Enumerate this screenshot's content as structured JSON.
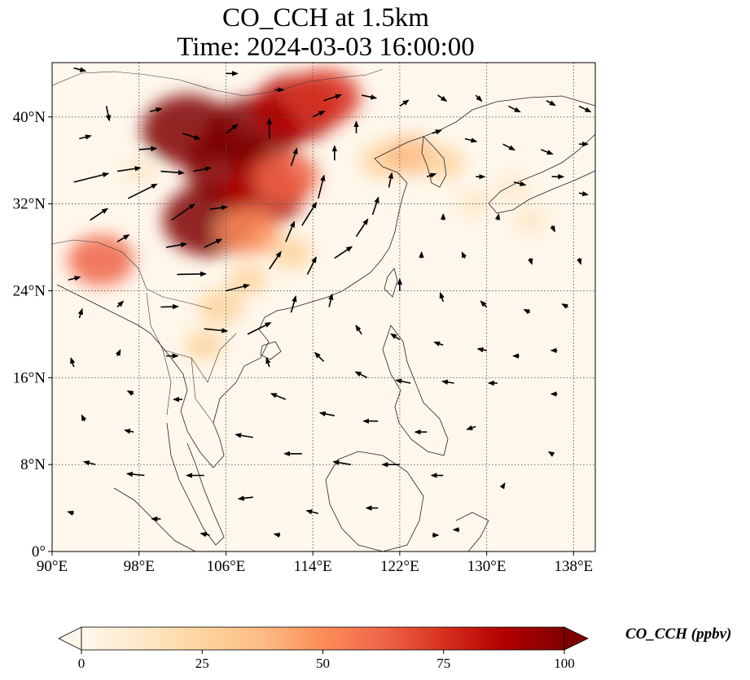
{
  "title_line1": "CO_CCH at 1.5km",
  "title_line2": "Time: 2024-03-03 16:00:00",
  "map": {
    "lon_range": [
      90,
      140
    ],
    "lat_range": [
      0,
      45
    ],
    "lon_ticks": [
      {
        "value": 90,
        "label": "90°E"
      },
      {
        "value": 98,
        "label": "98°E"
      },
      {
        "value": 106,
        "label": "106°E"
      },
      {
        "value": 114,
        "label": "114°E"
      },
      {
        "value": 122,
        "label": "122°E"
      },
      {
        "value": 130,
        "label": "130°E"
      },
      {
        "value": 138,
        "label": "138°E"
      }
    ],
    "lat_ticks": [
      {
        "value": 0,
        "label": "0°"
      },
      {
        "value": 8,
        "label": "8°N"
      },
      {
        "value": 16,
        "label": "16°N"
      },
      {
        "value": 24,
        "label": "24°N"
      },
      {
        "value": 32,
        "label": "32°N"
      },
      {
        "value": 40,
        "label": "40°N"
      }
    ],
    "gridlines": true,
    "colormap": "OrRd"
  },
  "colorbar": {
    "label": "CO_CCH (ppbv)",
    "min": 0,
    "max": 100,
    "extend": "both",
    "ticks": [
      {
        "value": 0,
        "label": "0"
      },
      {
        "value": 25,
        "label": "25"
      },
      {
        "value": 50,
        "label": "50"
      },
      {
        "value": 75,
        "label": "75"
      },
      {
        "value": 100,
        "label": "100"
      }
    ],
    "colors": [
      "#fff7ec",
      "#fee8c8",
      "#fdd49e",
      "#fdbb84",
      "#fc8d59",
      "#ef6548",
      "#d7301f",
      "#b30000",
      "#7f0000"
    ]
  },
  "co_plumes": [
    {
      "lon": 106.5,
      "lat": 35.5,
      "value": 100
    },
    {
      "lon": 108.5,
      "lat": 38.5,
      "value": 100
    },
    {
      "lon": 104.5,
      "lat": 30.5,
      "value": 100
    },
    {
      "lon": 102.5,
      "lat": 38.8,
      "value": 98
    },
    {
      "lon": 112.5,
      "lat": 40.8,
      "value": 90
    },
    {
      "lon": 115.0,
      "lat": 41.8,
      "value": 70
    },
    {
      "lon": 109.5,
      "lat": 33.0,
      "value": 85
    },
    {
      "lon": 111.5,
      "lat": 34.5,
      "value": 60
    },
    {
      "lon": 108.0,
      "lat": 29.5,
      "value": 55
    },
    {
      "lon": 94.5,
      "lat": 26.8,
      "value": 60
    },
    {
      "lon": 120.5,
      "lat": 36.0,
      "value": 30
    },
    {
      "lon": 123.0,
      "lat": 36.5,
      "value": 40
    },
    {
      "lon": 126.0,
      "lat": 35.8,
      "value": 25
    },
    {
      "lon": 112.0,
      "lat": 27.5,
      "value": 25
    },
    {
      "lon": 105.5,
      "lat": 22.5,
      "value": 30
    },
    {
      "lon": 104.0,
      "lat": 19.0,
      "value": 20
    },
    {
      "lon": 108.0,
      "lat": 25.0,
      "value": 20
    },
    {
      "lon": 134.0,
      "lat": 30.5,
      "value": 15
    },
    {
      "lon": 129.0,
      "lat": 32.0,
      "value": 15
    },
    {
      "lon": 132.5,
      "lat": 33.5,
      "value": 12
    },
    {
      "lon": 98.0,
      "lat": 35.0,
      "value": 10
    }
  ],
  "wind_vectors": [
    {
      "lon": 92.0,
      "lat": 34.0,
      "u": 6,
      "v": 1.5
    },
    {
      "lon": 96.0,
      "lat": 35.0,
      "u": 4,
      "v": 0.6
    },
    {
      "lon": 98.0,
      "lat": 37.0,
      "u": 3,
      "v": 0.2
    },
    {
      "lon": 100.0,
      "lat": 35.0,
      "u": 4,
      "v": -0.3
    },
    {
      "lon": 103.0,
      "lat": 35.0,
      "u": 3,
      "v": 0.6
    },
    {
      "lon": 97.0,
      "lat": 32.5,
      "u": 5,
      "v": 2.5
    },
    {
      "lon": 101.0,
      "lat": 30.5,
      "u": 4,
      "v": 2.8
    },
    {
      "lon": 104.5,
      "lat": 31.5,
      "u": 3,
      "v": 0.4
    },
    {
      "lon": 93.5,
      "lat": 30.5,
      "u": 3,
      "v": 2
    },
    {
      "lon": 96.0,
      "lat": 28.5,
      "u": 2,
      "v": 1.2
    },
    {
      "lon": 100.5,
      "lat": 28.0,
      "u": 3.5,
      "v": 0.6
    },
    {
      "lon": 104.0,
      "lat": 28.0,
      "u": 3,
      "v": 1.4
    },
    {
      "lon": 101.5,
      "lat": 25.5,
      "u": 5,
      "v": 0.1
    },
    {
      "lon": 106.0,
      "lat": 24.0,
      "u": 4,
      "v": 1
    },
    {
      "lon": 100.0,
      "lat": 22.5,
      "u": 3,
      "v": 0.1
    },
    {
      "lon": 104.0,
      "lat": 20.5,
      "u": 4,
      "v": -0.4
    },
    {
      "lon": 108.0,
      "lat": 20.0,
      "u": 4,
      "v": 2
    },
    {
      "lon": 110.0,
      "lat": 26.0,
      "u": 2,
      "v": 3
    },
    {
      "lon": 111.5,
      "lat": 28.5,
      "u": 1.5,
      "v": 3.5
    },
    {
      "lon": 113.0,
      "lat": 30.0,
      "u": 2.5,
      "v": 4
    },
    {
      "lon": 114.5,
      "lat": 32.5,
      "u": 1,
      "v": 4
    },
    {
      "lon": 113.5,
      "lat": 25.5,
      "u": 1.5,
      "v": 3
    },
    {
      "lon": 116.0,
      "lat": 27.0,
      "u": 3,
      "v": 2
    },
    {
      "lon": 118.0,
      "lat": 29.0,
      "u": 2,
      "v": 3
    },
    {
      "lon": 119.5,
      "lat": 31.0,
      "u": 1,
      "v": 3
    },
    {
      "lon": 121.0,
      "lat": 33.5,
      "u": 0.5,
      "v": 2.5
    },
    {
      "lon": 112.0,
      "lat": 22.0,
      "u": 0.8,
      "v": 2.8
    },
    {
      "lon": 115.5,
      "lat": 22.5,
      "u": 0.5,
      "v": 2.2
    },
    {
      "lon": 110.0,
      "lat": 17.0,
      "u": -0.5,
      "v": 1.5
    },
    {
      "lon": 112.0,
      "lat": 35.5,
      "u": 1,
      "v": 3
    },
    {
      "lon": 110.0,
      "lat": 38.0,
      "u": 0,
      "v": 3.5
    },
    {
      "lon": 106.0,
      "lat": 38.5,
      "u": 2,
      "v": 1.5
    },
    {
      "lon": 102.0,
      "lat": 38.5,
      "u": 3,
      "v": -1
    },
    {
      "lon": 99.0,
      "lat": 40.5,
      "u": 2,
      "v": 0.5
    },
    {
      "lon": 116.0,
      "lat": 36.0,
      "u": 0,
      "v": 2.5
    },
    {
      "lon": 118.0,
      "lat": 38.5,
      "u": 0,
      "v": 2
    },
    {
      "lon": 115.0,
      "lat": 41.5,
      "u": 3,
      "v": 1
    },
    {
      "lon": 118.5,
      "lat": 42.0,
      "u": 2.5,
      "v": -0.5
    },
    {
      "lon": 114.0,
      "lat": 40.0,
      "u": 2,
      "v": 1
    },
    {
      "lon": 122.0,
      "lat": 41.0,
      "u": 1.5,
      "v": 1
    },
    {
      "lon": 125.5,
      "lat": 42.0,
      "u": 1.5,
      "v": -1
    },
    {
      "lon": 129.0,
      "lat": 42.0,
      "u": 1,
      "v": -1
    },
    {
      "lon": 132.0,
      "lat": 41.0,
      "u": 2,
      "v": -1
    },
    {
      "lon": 135.5,
      "lat": 41.5,
      "u": 1.5,
      "v": -0.8
    },
    {
      "lon": 138.5,
      "lat": 41.0,
      "u": 2,
      "v": -1
    },
    {
      "lon": 125.0,
      "lat": 38.5,
      "u": 1.5,
      "v": 0.5
    },
    {
      "lon": 128.0,
      "lat": 38.0,
      "u": 2,
      "v": -0.5
    },
    {
      "lon": 131.5,
      "lat": 37.5,
      "u": 2,
      "v": -1
    },
    {
      "lon": 135.0,
      "lat": 37.0,
      "u": 2,
      "v": -0.8
    },
    {
      "lon": 138.5,
      "lat": 37.5,
      "u": 1.5,
      "v": 0
    },
    {
      "lon": 124.5,
      "lat": 34.5,
      "u": 1.5,
      "v": 0.5
    },
    {
      "lon": 129.0,
      "lat": 34.5,
      "u": 1.5,
      "v": 0
    },
    {
      "lon": 132.5,
      "lat": 34.0,
      "u": 2,
      "v": -0.5
    },
    {
      "lon": 136.0,
      "lat": 34.5,
      "u": 2,
      "v": 0
    },
    {
      "lon": 138.5,
      "lat": 33.0,
      "u": 1.5,
      "v": -0.3
    },
    {
      "lon": 126.0,
      "lat": 30.5,
      "u": 0,
      "v": 1
    },
    {
      "lon": 131.0,
      "lat": 30.5,
      "u": 0.2,
      "v": 1
    },
    {
      "lon": 136.0,
      "lat": 30.0,
      "u": 0.5,
      "v": -1
    },
    {
      "lon": 124.0,
      "lat": 27.0,
      "u": 0,
      "v": 1
    },
    {
      "lon": 128.0,
      "lat": 27.0,
      "u": -0.5,
      "v": 1
    },
    {
      "lon": 134.0,
      "lat": 27.0,
      "u": 0.3,
      "v": -1
    },
    {
      "lon": 138.5,
      "lat": 27.0,
      "u": 0.3,
      "v": -1
    },
    {
      "lon": 122.0,
      "lat": 24.0,
      "u": 0,
      "v": 2
    },
    {
      "lon": 126.0,
      "lat": 23.0,
      "u": -0.5,
      "v": 1.5
    },
    {
      "lon": 130.0,
      "lat": 22.5,
      "u": -1,
      "v": 1
    },
    {
      "lon": 134.0,
      "lat": 22.0,
      "u": -1,
      "v": 0.5
    },
    {
      "lon": 137.5,
      "lat": 22.5,
      "u": -1,
      "v": 0.5
    },
    {
      "lon": 118.5,
      "lat": 20.0,
      "u": -1,
      "v": 1.5
    },
    {
      "lon": 122.0,
      "lat": 19.5,
      "u": -1.5,
      "v": 1
    },
    {
      "lon": 126.0,
      "lat": 19.0,
      "u": -1.5,
      "v": 0.5
    },
    {
      "lon": 130.0,
      "lat": 18.5,
      "u": -1.5,
      "v": 0.3
    },
    {
      "lon": 133.0,
      "lat": 18.0,
      "u": -1,
      "v": 0
    },
    {
      "lon": 136.5,
      "lat": 18.5,
      "u": -1,
      "v": 0
    },
    {
      "lon": 115.0,
      "lat": 17.5,
      "u": -1.5,
      "v": 1.5
    },
    {
      "lon": 119.0,
      "lat": 16.0,
      "u": -2,
      "v": 1
    },
    {
      "lon": 123.0,
      "lat": 15.5,
      "u": -2.5,
      "v": 0.5
    },
    {
      "lon": 127.0,
      "lat": 15.5,
      "u": -2,
      "v": 0.3
    },
    {
      "lon": 131.0,
      "lat": 15.5,
      "u": -1.5,
      "v": 0
    },
    {
      "lon": 136.5,
      "lat": 14.5,
      "u": -1,
      "v": 0
    },
    {
      "lon": 111.5,
      "lat": 14.0,
      "u": -2.5,
      "v": 1
    },
    {
      "lon": 116.0,
      "lat": 12.5,
      "u": -2.5,
      "v": 0.5
    },
    {
      "lon": 120.0,
      "lat": 12.0,
      "u": -2.5,
      "v": 0
    },
    {
      "lon": 124.5,
      "lat": 11.0,
      "u": -2,
      "v": 0
    },
    {
      "lon": 129.0,
      "lat": 11.5,
      "u": -1.5,
      "v": -0.5
    },
    {
      "lon": 108.5,
      "lat": 10.5,
      "u": -3,
      "v": 0.5
    },
    {
      "lon": 113.0,
      "lat": 9.0,
      "u": -3,
      "v": 0
    },
    {
      "lon": 117.5,
      "lat": 8.0,
      "u": -3,
      "v": 0.5
    },
    {
      "lon": 122.0,
      "lat": 8.0,
      "u": -3,
      "v": 0
    },
    {
      "lon": 126.0,
      "lat": 7.0,
      "u": -2,
      "v": 0
    },
    {
      "lon": 104.0,
      "lat": 7.0,
      "u": -3,
      "v": 0
    },
    {
      "lon": 98.5,
      "lat": 7.0,
      "u": -3,
      "v": 0.3
    },
    {
      "lon": 94.0,
      "lat": 8.0,
      "u": -2,
      "v": 0.5
    },
    {
      "lon": 108.5,
      "lat": 5.0,
      "u": -2.5,
      "v": -0.3
    },
    {
      "lon": 114.5,
      "lat": 3.5,
      "u": -2,
      "v": 0.5
    },
    {
      "lon": 120.0,
      "lat": 4.0,
      "u": -2,
      "v": 0
    },
    {
      "lon": 100.0,
      "lat": 3.0,
      "u": -1.5,
      "v": 0
    },
    {
      "lon": 92.0,
      "lat": 3.5,
      "u": -1,
      "v": 0.3
    },
    {
      "lon": 104.5,
      "lat": 1.5,
      "u": -1.5,
      "v": 0.3
    },
    {
      "lon": 111.0,
      "lat": 1.5,
      "u": -1,
      "v": 0.2
    },
    {
      "lon": 127.5,
      "lat": 2.0,
      "u": -1,
      "v": 0
    },
    {
      "lon": 92.0,
      "lat": 17.0,
      "u": -0.5,
      "v": 1.5
    },
    {
      "lon": 96.0,
      "lat": 18.0,
      "u": 0.5,
      "v": 1
    },
    {
      "lon": 100.5,
      "lat": 18.0,
      "u": 2,
      "v": 0
    },
    {
      "lon": 97.5,
      "lat": 14.5,
      "u": -1,
      "v": 0.5
    },
    {
      "lon": 102.0,
      "lat": 14.0,
      "u": -1.5,
      "v": 0
    },
    {
      "lon": 93.0,
      "lat": 12.0,
      "u": -0.5,
      "v": 1
    },
    {
      "lon": 97.5,
      "lat": 11.0,
      "u": -1.5,
      "v": 0.3
    },
    {
      "lon": 92.5,
      "lat": 21.5,
      "u": 0.5,
      "v": 1.5
    },
    {
      "lon": 96.0,
      "lat": 22.5,
      "u": 1,
      "v": 1
    },
    {
      "lon": 91.5,
      "lat": 25.0,
      "u": 2,
      "v": 0.5
    },
    {
      "lon": 92.5,
      "lat": 38.0,
      "u": 2,
      "v": 0.5
    },
    {
      "lon": 95.0,
      "lat": 41.0,
      "u": 0.5,
      "v": -2.5
    },
    {
      "lon": 92.0,
      "lat": 44.5,
      "u": 2,
      "v": -0.5
    },
    {
      "lon": 106.0,
      "lat": 44.0,
      "u": 2,
      "v": 0
    },
    {
      "lon": 110.5,
      "lat": 42.5,
      "u": 1.5,
      "v": 0
    },
    {
      "lon": 131.5,
      "lat": 6.0,
      "u": 0.3,
      "v": 0.5
    },
    {
      "lon": 136.0,
      "lat": 9.0,
      "u": -0.5,
      "v": 0.3
    },
    {
      "lon": 125.0,
      "lat": 1.5,
      "u": 1,
      "v": 0
    }
  ]
}
